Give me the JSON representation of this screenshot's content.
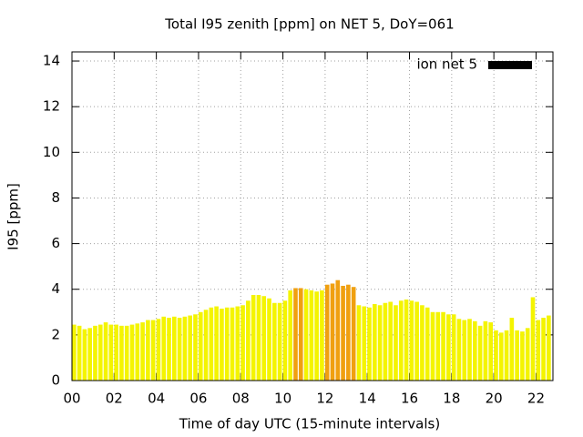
{
  "chart_data": {
    "type": "bar",
    "title": "Total I95 zenith [ppm] on NET 5, DoY=061",
    "x_label": "Time of day UTC (15-minute intervals)",
    "y_label": "I95 [ppm]",
    "legend_position": "top-right",
    "grid": true,
    "xlim": [
      0,
      22.8
    ],
    "ylim": [
      0,
      14.4
    ],
    "xticks": [
      {
        "value": 0,
        "label": "00"
      },
      {
        "value": 2,
        "label": "02"
      },
      {
        "value": 4,
        "label": "04"
      },
      {
        "value": 6,
        "label": "06"
      },
      {
        "value": 8,
        "label": "08"
      },
      10,
      12,
      14,
      16,
      18,
      20,
      22
    ],
    "yticks": [
      0,
      2,
      4,
      6,
      8,
      10,
      12,
      14
    ],
    "bar_width": 0.2,
    "series": [
      {
        "name": "ion net 5",
        "color": "#000000",
        "x": [
          0,
          0.25,
          0.5,
          0.75,
          1,
          1.25,
          1.5,
          1.75,
          2,
          2.25,
          2.5,
          2.75,
          3,
          3.25,
          3.5,
          3.75,
          4,
          4.25,
          4.5,
          4.75,
          5,
          5.25,
          5.5,
          5.75,
          6,
          6.25,
          6.5,
          6.75,
          7,
          7.25,
          7.5,
          7.75,
          8,
          8.25,
          8.5,
          8.75,
          9,
          9.25,
          9.5,
          9.75,
          10,
          10.25,
          10.5,
          10.75,
          11,
          11.25,
          11.5,
          11.75,
          12,
          12.25,
          12.5,
          12.75,
          13,
          13.25,
          13.5,
          13.75,
          14,
          14.25,
          14.5,
          14.75,
          15,
          15.25,
          15.5,
          15.75,
          16,
          16.25,
          16.5,
          16.75,
          17,
          17.25,
          17.5,
          17.75,
          18,
          18.25,
          18.5,
          18.75,
          19,
          19.25,
          19.5,
          19.75,
          20,
          20.25,
          20.5,
          20.75,
          21,
          21.25,
          21.5,
          21.75,
          22,
          22.25,
          22.5
        ],
        "values": [
          2.45,
          2.4,
          2.25,
          2.3,
          2.4,
          2.45,
          2.55,
          2.45,
          2.45,
          2.4,
          2.4,
          2.45,
          2.5,
          2.55,
          2.65,
          2.65,
          2.7,
          2.8,
          2.75,
          2.8,
          2.75,
          2.8,
          2.85,
          2.9,
          3.0,
          3.1,
          3.2,
          3.25,
          3.15,
          3.2,
          3.2,
          3.25,
          3.3,
          3.5,
          3.75,
          3.75,
          3.7,
          3.6,
          3.4,
          3.4,
          3.5,
          3.95,
          4.05,
          4.05,
          4.0,
          3.95,
          3.9,
          3.95,
          4.2,
          4.25,
          4.4,
          4.15,
          4.2,
          4.1,
          3.3,
          3.25,
          3.2,
          3.35,
          3.3,
          3.4,
          3.45,
          3.3,
          3.5,
          3.55,
          3.5,
          3.45,
          3.3,
          3.2,
          3.0,
          3.0,
          3.0,
          2.9,
          2.9,
          2.7,
          2.65,
          2.7,
          2.6,
          2.4,
          2.6,
          2.55,
          2.2,
          2.1,
          2.2,
          2.75,
          2.2,
          2.15,
          2.3,
          3.65,
          2.65,
          2.75,
          2.85
        ],
        "bar_colors": [
          "#f4f400",
          "#f4f400",
          "#f4f400",
          "#f4f400",
          "#f4f400",
          "#f4f400",
          "#f4f400",
          "#f4f400",
          "#f4f400",
          "#f4f400",
          "#f4f400",
          "#f4f400",
          "#f4f400",
          "#f4f400",
          "#f4f400",
          "#f4f400",
          "#f4f400",
          "#f4f400",
          "#f4f400",
          "#f4f400",
          "#f4f400",
          "#f4f400",
          "#f4f400",
          "#f4f400",
          "#f4f400",
          "#f4f400",
          "#f4f400",
          "#f4f400",
          "#f4f400",
          "#f4f400",
          "#f4f400",
          "#f4f400",
          "#f4f400",
          "#f4f400",
          "#f4f400",
          "#f4f400",
          "#f4f400",
          "#f4f400",
          "#f4f400",
          "#f4f400",
          "#f4f400",
          "#f4f400",
          "#f0a010",
          "#f0a010",
          "#f4f400",
          "#f4f400",
          "#f4f400",
          "#f4f400",
          "#f0a010",
          "#f0a010",
          "#f0a010",
          "#f0a010",
          "#f0a010",
          "#f0a010",
          "#f4f400",
          "#f4f400",
          "#f4f400",
          "#f4f400",
          "#f4f400",
          "#f4f400",
          "#f4f400",
          "#f4f400",
          "#f4f400",
          "#f4f400",
          "#f4f400",
          "#f4f400",
          "#f4f400",
          "#f4f400",
          "#f4f400",
          "#f4f400",
          "#f4f400",
          "#f4f400",
          "#f4f400",
          "#f4f400",
          "#f4f400",
          "#f4f400",
          "#f4f400",
          "#f4f400",
          "#f4f400",
          "#f4f400",
          "#f4f400",
          "#f4f400",
          "#f4f400",
          "#f4f400",
          "#f4f400",
          "#f4f400",
          "#f4f400",
          "#f4f400",
          "#f4f400",
          "#f4f400",
          "#f4f400"
        ]
      }
    ]
  }
}
